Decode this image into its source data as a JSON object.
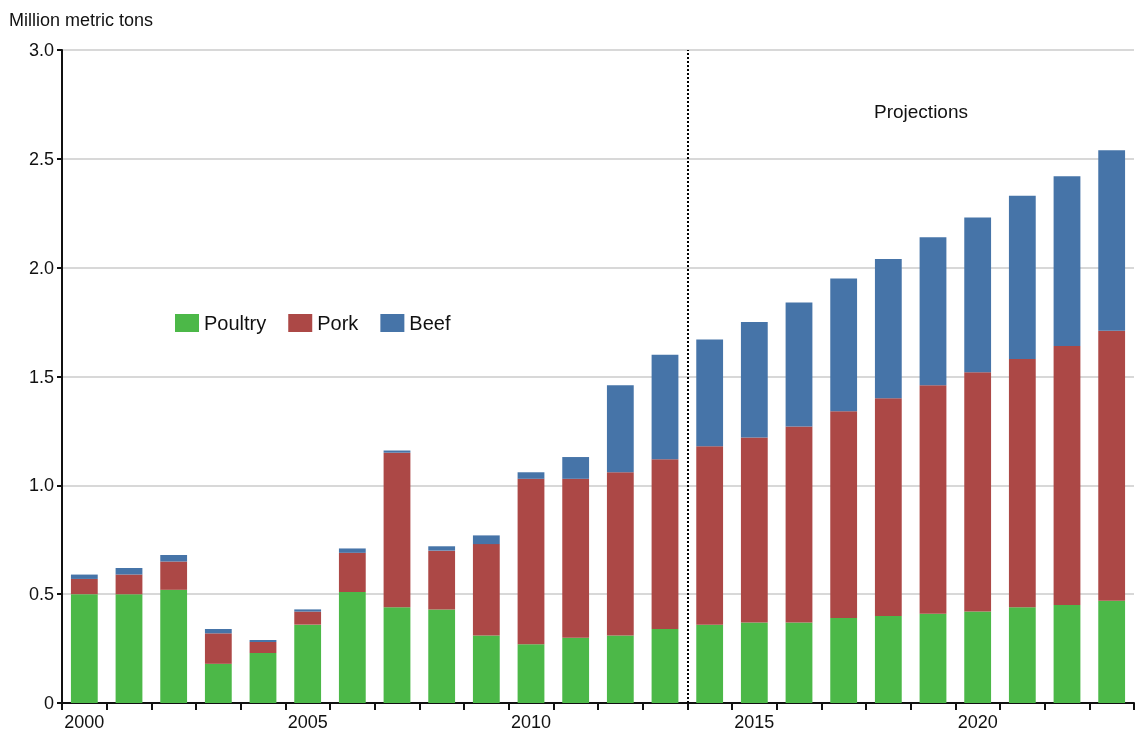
{
  "chart_data": {
    "type": "bar",
    "stacked": true,
    "ylabel": "Million metric tons",
    "x": [
      2000,
      2001,
      2002,
      2003,
      2004,
      2005,
      2006,
      2007,
      2008,
      2009,
      2010,
      2011,
      2012,
      2013,
      2014,
      2015,
      2016,
      2017,
      2018,
      2019,
      2020,
      2021,
      2022,
      2023
    ],
    "series": [
      {
        "name": "Poultry",
        "color": "#4cb848",
        "values": [
          0.5,
          0.5,
          0.52,
          0.18,
          0.23,
          0.36,
          0.51,
          0.44,
          0.43,
          0.31,
          0.27,
          0.3,
          0.31,
          0.34,
          0.36,
          0.37,
          0.37,
          0.39,
          0.4,
          0.41,
          0.42,
          0.44,
          0.45,
          0.47
        ]
      },
      {
        "name": "Pork",
        "color": "#ac4846",
        "values": [
          0.07,
          0.09,
          0.13,
          0.14,
          0.05,
          0.06,
          0.18,
          0.71,
          0.27,
          0.42,
          0.76,
          0.73,
          0.75,
          0.78,
          0.82,
          0.85,
          0.9,
          0.95,
          1.0,
          1.05,
          1.1,
          1.14,
          1.19,
          1.24
        ]
      },
      {
        "name": "Beef",
        "color": "#4674a8",
        "values": [
          0.02,
          0.03,
          0.03,
          0.02,
          0.01,
          0.01,
          0.02,
          0.01,
          0.02,
          0.04,
          0.03,
          0.1,
          0.4,
          0.48,
          0.49,
          0.53,
          0.57,
          0.61,
          0.64,
          0.68,
          0.71,
          0.75,
          0.78,
          0.83
        ]
      }
    ],
    "xlim": [
      1999.5,
      2023.5
    ],
    "xticks": [
      2000,
      2005,
      2010,
      2015,
      2020
    ],
    "ylim": [
      0,
      3
    ],
    "yticks": [
      0,
      {
        "value": 0.5,
        "label": "0.5"
      },
      {
        "value": 1,
        "label": "1.0"
      },
      {
        "value": 1.5,
        "label": "1.5"
      },
      {
        "value": 2,
        "label": "2.0"
      },
      {
        "value": 2.5,
        "label": "2.5"
      },
      {
        "value": 3,
        "label": "3.0"
      }
    ],
    "grid": "y",
    "legend": "left",
    "ref_lines": [
      {
        "axis": "x",
        "value": 2013.5,
        "color": "#000000",
        "line_style": "dotted"
      }
    ],
    "annotations": [
      "Projections"
    ]
  }
}
